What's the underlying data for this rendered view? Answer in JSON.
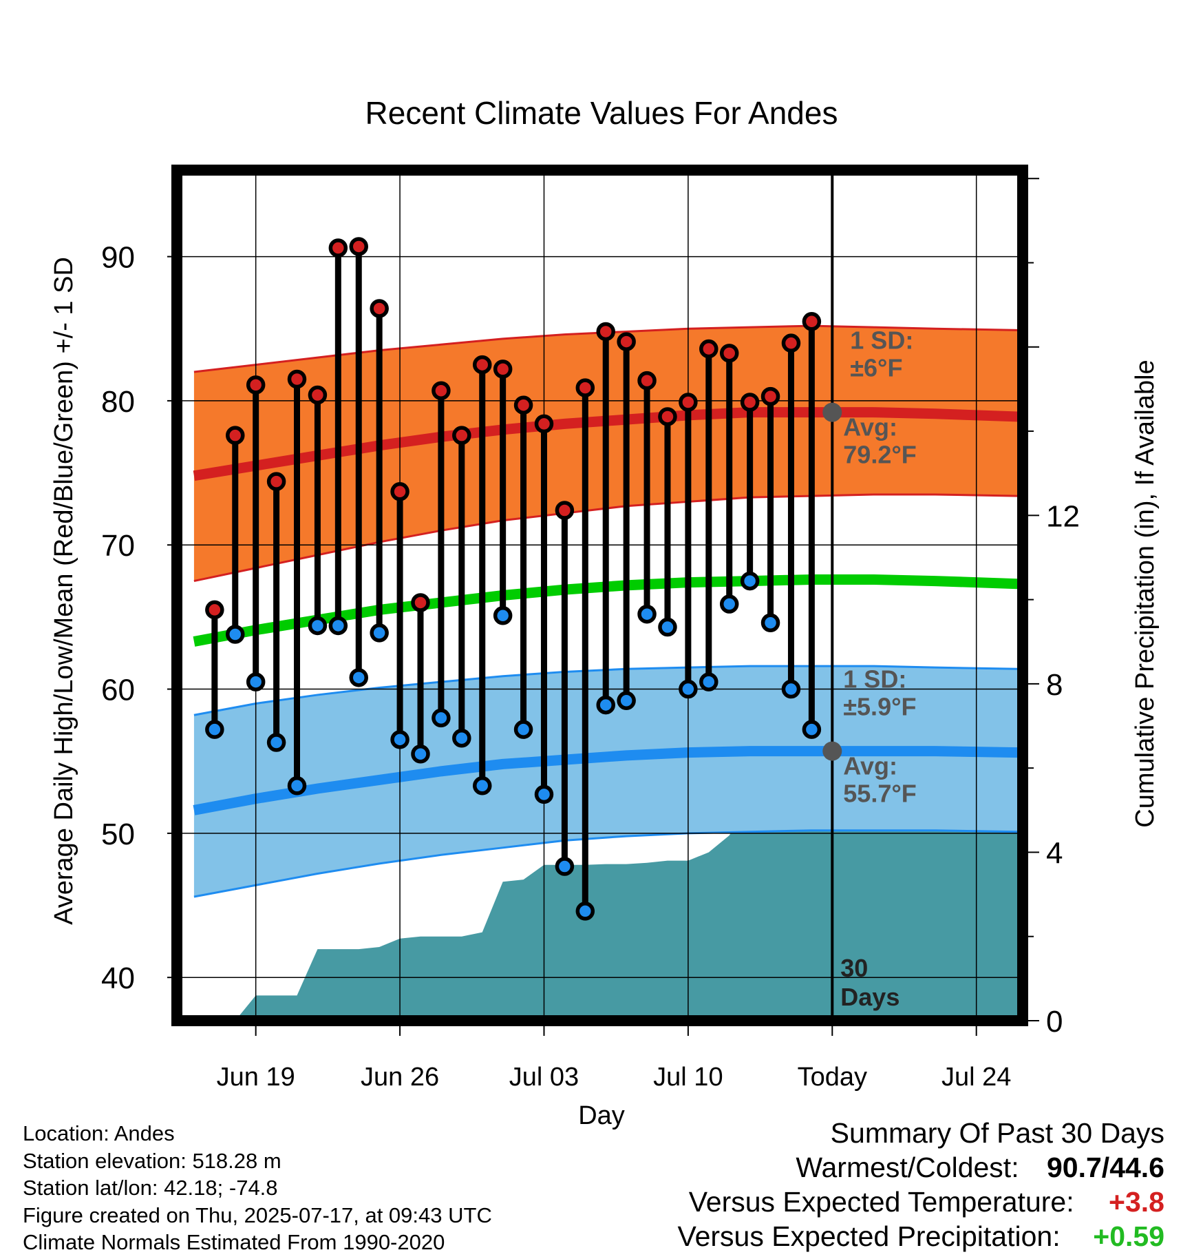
{
  "title": "Recent Climate Values For Andes",
  "colors": {
    "high_band": "#f5792b",
    "high_band_edge": "#d42020",
    "high_avg_line": "#d42020",
    "low_band": "#82c2e8",
    "low_band_edge": "#1e8cf0",
    "low_avg_line": "#1e8cf0",
    "mean_line": "#00cc00",
    "precip_fill": "#479aa3",
    "high_dot": "#d42020",
    "low_dot": "#1e8cf0",
    "today_marker": "#555555",
    "annotation_text": "#555555",
    "temp_anomaly": "#d42020",
    "precip_anomaly": "#22bb22"
  },
  "chart_data": {
    "type": "line",
    "title": "Recent Climate Values For Andes",
    "xlabel": "Day",
    "ylabel": "Average Daily High/Low/Mean (Red/Blue/Green) +/- 1 SD",
    "y2label": "Cumulative Precipitation (in), If Available",
    "x_tick_labels": [
      "Jun 19",
      "Jun 26",
      "Jul 03",
      "Jul 10",
      "Today",
      "Jul 24"
    ],
    "x_tick_dates": [
      "2025-06-19",
      "2025-06-26",
      "2025-07-03",
      "2025-07-10",
      "2025-07-17",
      "2025-07-24"
    ],
    "xlim": [
      "2025-06-15T16:00",
      "2025-07-26T18:00"
    ],
    "ylim": [
      37,
      96
    ],
    "yticks": [
      40,
      50,
      60,
      70,
      80,
      90
    ],
    "y2lim": [
      0,
      20.2
    ],
    "y2ticks": [
      0,
      4,
      8,
      12
    ],
    "grid": true,
    "today": "2025-07-17",
    "observed": {
      "dates": [
        "2025-06-17",
        "2025-06-18",
        "2025-06-19",
        "2025-06-20",
        "2025-06-21",
        "2025-06-22",
        "2025-06-23",
        "2025-06-24",
        "2025-06-25",
        "2025-06-26",
        "2025-06-27",
        "2025-06-28",
        "2025-06-29",
        "2025-06-30",
        "2025-07-01",
        "2025-07-02",
        "2025-07-03",
        "2025-07-04",
        "2025-07-05",
        "2025-07-06",
        "2025-07-07",
        "2025-07-08",
        "2025-07-09",
        "2025-07-10",
        "2025-07-11",
        "2025-07-12",
        "2025-07-13",
        "2025-07-14",
        "2025-07-15",
        "2025-07-16"
      ],
      "highs": [
        65.5,
        77.6,
        81.1,
        74.4,
        81.5,
        80.4,
        90.6,
        90.7,
        86.4,
        73.7,
        66.0,
        80.7,
        77.6,
        82.5,
        82.2,
        79.7,
        78.4,
        72.4,
        80.9,
        84.8,
        84.1,
        81.4,
        78.9,
        79.9,
        83.6,
        83.3,
        79.9,
        80.3,
        84.0,
        85.5
      ],
      "lows": [
        57.2,
        63.8,
        60.5,
        56.3,
        53.3,
        64.4,
        64.4,
        60.8,
        63.9,
        56.5,
        55.5,
        58.0,
        56.6,
        53.3,
        65.1,
        57.2,
        52.7,
        47.7,
        44.6,
        58.9,
        59.2,
        65.2,
        64.3,
        60.0,
        60.5,
        65.9,
        67.5,
        64.6,
        60.0,
        57.2
      ]
    },
    "normals": {
      "dates": [
        "2025-06-16",
        "2025-06-19",
        "2025-06-22",
        "2025-06-25",
        "2025-06-28",
        "2025-07-01",
        "2025-07-04",
        "2025-07-07",
        "2025-07-10",
        "2025-07-13",
        "2025-07-16",
        "2025-07-19",
        "2025-07-22",
        "2025-07-26"
      ],
      "avg_high": [
        74.8,
        75.5,
        76.2,
        76.9,
        77.5,
        78.0,
        78.4,
        78.7,
        79.0,
        79.2,
        79.2,
        79.2,
        79.1,
        78.9
      ],
      "high_upper": [
        82.0,
        82.5,
        83.0,
        83.5,
        83.9,
        84.3,
        84.6,
        84.8,
        85.0,
        85.1,
        85.2,
        85.1,
        85.0,
        84.9
      ],
      "high_lower": [
        67.5,
        68.4,
        69.3,
        70.2,
        71.0,
        71.7,
        72.2,
        72.7,
        73.0,
        73.3,
        73.4,
        73.5,
        73.5,
        73.4
      ],
      "avg_mean": [
        63.3,
        64.1,
        64.8,
        65.5,
        66.0,
        66.5,
        66.9,
        67.2,
        67.4,
        67.5,
        67.6,
        67.6,
        67.5,
        67.3
      ],
      "avg_low": [
        51.6,
        52.4,
        53.1,
        53.7,
        54.3,
        54.8,
        55.1,
        55.4,
        55.6,
        55.7,
        55.7,
        55.7,
        55.7,
        55.6
      ],
      "low_upper": [
        58.2,
        59.0,
        59.6,
        60.1,
        60.5,
        60.9,
        61.2,
        61.4,
        61.5,
        61.6,
        61.6,
        61.6,
        61.5,
        61.4
      ],
      "low_lower": [
        45.6,
        46.4,
        47.2,
        47.9,
        48.5,
        49.0,
        49.5,
        49.8,
        50.0,
        50.1,
        50.2,
        50.2,
        50.2,
        50.1
      ]
    },
    "precip": {
      "dates": [
        "2025-06-16",
        "2025-06-17",
        "2025-06-18",
        "2025-06-19",
        "2025-06-20",
        "2025-06-21",
        "2025-06-22",
        "2025-06-23",
        "2025-06-24",
        "2025-06-25",
        "2025-06-26",
        "2025-06-27",
        "2025-06-28",
        "2025-06-29",
        "2025-06-30",
        "2025-07-01",
        "2025-07-02",
        "2025-07-03",
        "2025-07-04",
        "2025-07-05",
        "2025-07-06",
        "2025-07-07",
        "2025-07-08",
        "2025-07-09",
        "2025-07-10",
        "2025-07-11",
        "2025-07-12",
        "2025-07-13",
        "2025-07-14",
        "2025-07-15",
        "2025-07-16",
        "2025-07-17",
        "2025-07-26"
      ],
      "values": [
        0.0,
        0.0,
        0.0,
        0.6,
        0.6,
        0.6,
        1.7,
        1.7,
        1.7,
        1.75,
        1.95,
        2.0,
        2.0,
        2.0,
        2.1,
        3.3,
        3.35,
        3.7,
        3.7,
        3.7,
        3.72,
        3.72,
        3.75,
        3.8,
        3.8,
        4.0,
        4.4,
        5.2,
        5.25,
        5.25,
        5.25,
        5.25,
        5.25
      ]
    },
    "annotations": {
      "high_sd_label": "1 SD:",
      "high_sd_value": "±6°F",
      "high_avg_label": "Avg:",
      "high_avg_value": "79.2°F",
      "low_sd_label": "1 SD:",
      "low_sd_value": "±5.9°F",
      "low_avg_label": "Avg:",
      "low_avg_value": "55.7°F",
      "days_value": "30",
      "days_label": "Days"
    }
  },
  "station_info": [
    "Location: Andes",
    "Station elevation: 518.28 m",
    "Station lat/lon: 42.18; -74.8",
    "Figure created on Thu, 2025-07-17, at 09:43 UTC",
    "Climate Normals Estimated From 1990-2020"
  ],
  "summary": {
    "heading": "Summary Of Past 30 Days",
    "warmest_label": "Warmest/Coldest:",
    "warmest_value": "90.7/44.6",
    "temp_label": "Versus Expected Temperature:",
    "temp_value": "+3.8",
    "precip_label": "Versus Expected Precipitation:",
    "precip_value": "+0.59"
  }
}
